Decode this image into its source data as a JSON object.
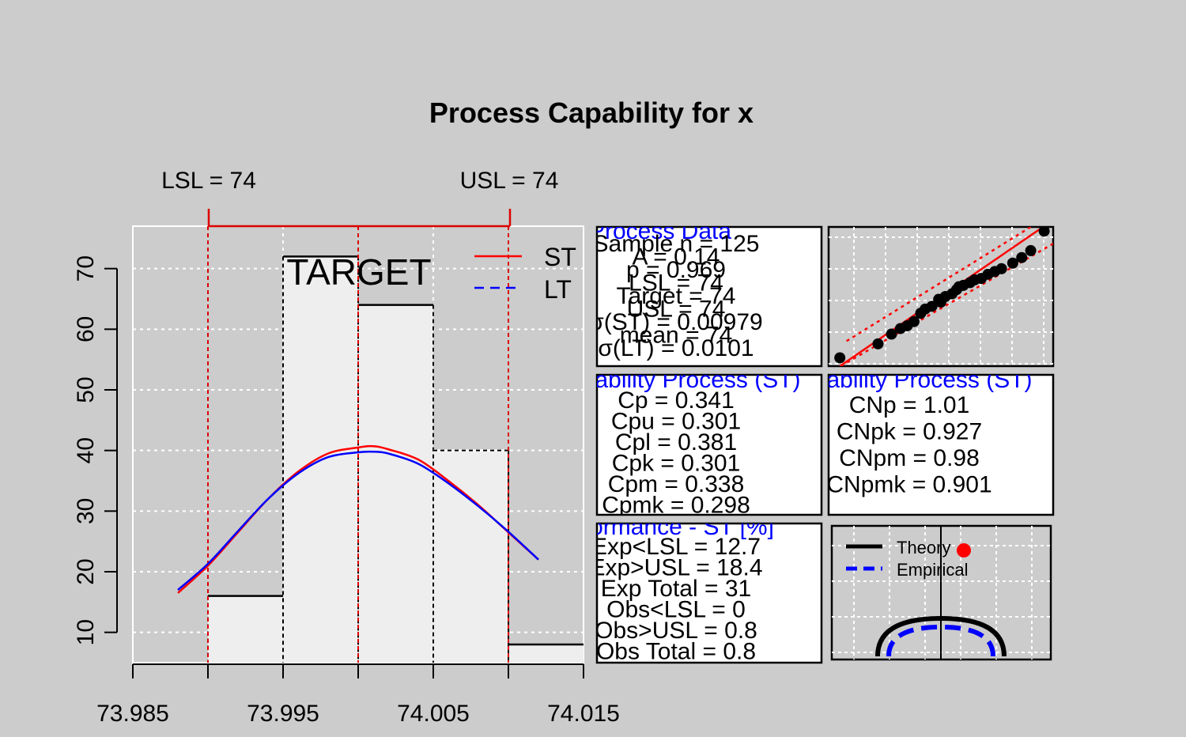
{
  "title": "Process Capability for x",
  "spec_labels": {
    "lsl": "LSL = 74",
    "usl": "USL = 74"
  },
  "target_label": "TARGET",
  "legend": {
    "st": "ST",
    "lt": "LT"
  },
  "colors": {
    "st": "#ff0000",
    "lt": "#0000ff",
    "spec": "#dd0000",
    "text_blue": "#0000ff",
    "background": "#cccccc",
    "hist_fill": "#eeeeee"
  },
  "chart_data": {
    "type": "bar",
    "title": "Process Capability for x",
    "xlim": [
      73.985,
      74.015
    ],
    "ylim": [
      5,
      77
    ],
    "x_ticks": [
      "73.985",
      "73.995",
      "74.005",
      "74.015"
    ],
    "x_tick_values": [
      73.985,
      73.99,
      73.995,
      74.0,
      74.005,
      74.01,
      74.015
    ],
    "y_ticks": [
      10,
      20,
      30,
      40,
      50,
      60,
      70
    ],
    "grid": true,
    "legend_position": "top-right",
    "histogram": [
      {
        "from": 73.985,
        "to": 73.99,
        "value": 0
      },
      {
        "from": 73.99,
        "to": 73.995,
        "value": 16
      },
      {
        "from": 73.995,
        "to": 74.0,
        "value": 72
      },
      {
        "from": 74.0,
        "to": 74.005,
        "value": 64
      },
      {
        "from": 74.005,
        "to": 74.01,
        "value": 40
      },
      {
        "from": 74.01,
        "to": 74.015,
        "value": 8
      }
    ],
    "spec_lines": {
      "lsl": 73.99,
      "target": 74.0,
      "usl": 74.01
    },
    "series": [
      {
        "name": "ST",
        "x": [
          73.988,
          73.99,
          73.992,
          73.994,
          73.996,
          73.998,
          74.0,
          74.001,
          74.002,
          74.004,
          74.006,
          74.008,
          74.01,
          74.012
        ],
        "y": [
          16.5,
          21.0,
          26.5,
          32.0,
          36.5,
          39.5,
          40.5,
          40.7,
          40.2,
          38.5,
          35.0,
          31.0,
          26.5,
          22.0
        ]
      },
      {
        "name": "LT",
        "x": [
          73.988,
          73.99,
          73.992,
          73.994,
          73.996,
          73.998,
          74.0,
          74.001,
          74.002,
          74.004,
          74.006,
          74.008,
          74.01,
          74.012
        ],
        "y": [
          17.0,
          21.3,
          26.7,
          32.0,
          36.2,
          38.9,
          39.7,
          39.8,
          39.5,
          37.8,
          34.6,
          30.8,
          26.6,
          22.0
        ]
      }
    ]
  },
  "process_data": {
    "header": "Process Data",
    "lines": [
      "Sample n = 125",
      "A = 0.14",
      "p = 0.969",
      "LSL = 74",
      "Target = 74",
      "USL = 74",
      "σ(ST) = 0.00979",
      "mean = 74",
      "σ(LT) = 0.0101"
    ]
  },
  "capability": {
    "header": "Capability Process (ST)",
    "lines": [
      "Cp = 0.341",
      "Cpu = 0.301",
      "Cpl = 0.381",
      "Cpk = 0.301",
      "Cpm = 0.338",
      "Cpmk = 0.298"
    ]
  },
  "capability_np": {
    "header": "Capability Process (ST)",
    "lines": [
      "CNp = 1.01",
      "CNpk = 0.927",
      "CNpm = 0.98",
      "CNpmk = 0.901"
    ]
  },
  "performance": {
    "header": "Performance - ST [%]",
    "lines": [
      "Exp<LSL = 12.7",
      "Exp>USL = 18.4",
      "Exp Total = 31",
      "Obs<LSL = 0",
      "Obs>USL = 0.8",
      "Obs Total = 0.8"
    ]
  },
  "qq_panel": {
    "points": [
      [
        0.05,
        0.06
      ],
      [
        0.22,
        0.16
      ],
      [
        0.28,
        0.23
      ],
      [
        0.32,
        0.27
      ],
      [
        0.35,
        0.29
      ],
      [
        0.38,
        0.32
      ],
      [
        0.41,
        0.38
      ],
      [
        0.43,
        0.41
      ],
      [
        0.46,
        0.43
      ],
      [
        0.49,
        0.48
      ],
      [
        0.5,
        0.46
      ],
      [
        0.52,
        0.5
      ],
      [
        0.55,
        0.52
      ],
      [
        0.57,
        0.55
      ],
      [
        0.58,
        0.57
      ],
      [
        0.6,
        0.58
      ],
      [
        0.63,
        0.6
      ],
      [
        0.65,
        0.62
      ],
      [
        0.68,
        0.63
      ],
      [
        0.71,
        0.66
      ],
      [
        0.74,
        0.68
      ],
      [
        0.77,
        0.7
      ],
      [
        0.82,
        0.74
      ],
      [
        0.86,
        0.78
      ],
      [
        0.9,
        0.83
      ],
      [
        0.96,
        0.97
      ]
    ]
  },
  "ellipse_panel": {
    "legend": [
      "Theory",
      "Empirical"
    ]
  }
}
